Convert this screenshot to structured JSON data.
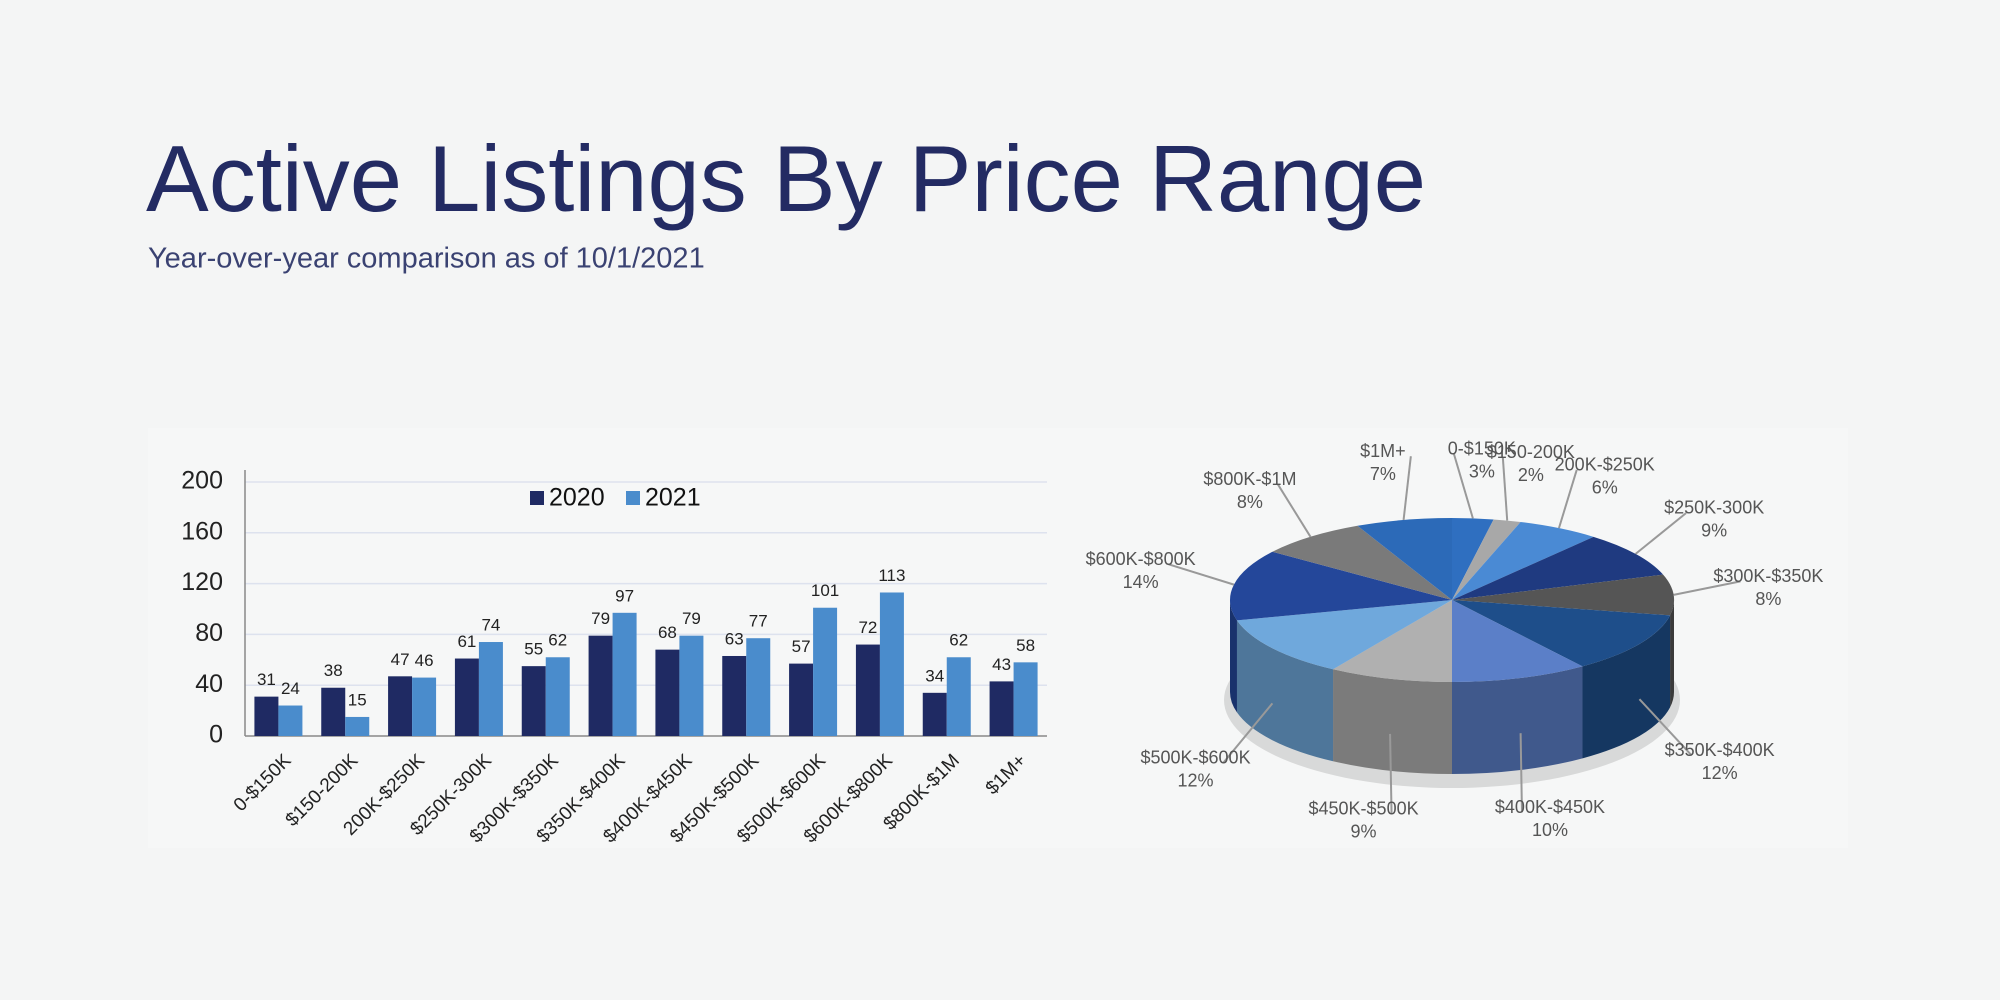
{
  "header": {
    "title": "Active Listings By Price Range",
    "subtitle": "Year-over-year comparison as of 10/1/2021"
  },
  "chart_data": [
    {
      "type": "bar",
      "categories": [
        "0-$150K",
        "$150-200K",
        "200K-$250K",
        "$250K-300K",
        "$300K-$350K",
        "$350K-$400K",
        "$400K-$450K",
        "$450K-$500K",
        "$500K-$600K",
        "$600K-$800K",
        "$800K-$1M",
        "$1M+"
      ],
      "series": [
        {
          "name": "2020",
          "color": "#1f2a63",
          "values": [
            31,
            38,
            47,
            61,
            55,
            79,
            68,
            63,
            57,
            72,
            34,
            43
          ]
        },
        {
          "name": "2021",
          "color": "#4a8ccc",
          "values": [
            24,
            15,
            46,
            74,
            62,
            97,
            79,
            77,
            101,
            113,
            62,
            58
          ]
        }
      ],
      "ylim": [
        0,
        200
      ],
      "yticks": [
        0,
        40,
        80,
        120,
        160,
        200
      ],
      "grid": true,
      "legend": "top"
    },
    {
      "type": "pie",
      "categories": [
        "0-$150K",
        "$150-200K",
        "200K-$250K",
        "$250K-300K",
        "$300K-$350K",
        "$350K-$400K",
        "$400K-$450K",
        "$450K-$500K",
        "$500K-$600K",
        "$600K-$800K",
        "$800K-$1M",
        "$1M+"
      ],
      "values": [
        3,
        2,
        6,
        9,
        8,
        12,
        10,
        9,
        12,
        14,
        8,
        7
      ],
      "value_labels": [
        "3%",
        "2%",
        "6%",
        "9%",
        "8%",
        "12%",
        "10%",
        "9%",
        "12%",
        "14%",
        "8%",
        "7%"
      ],
      "colors": [
        "#2f6fc0",
        "#a8a8a8",
        "#4a8ad4",
        "#1f3a80",
        "#555555",
        "#1e4e8a",
        "#5b7fc8",
        "#b0b0b0",
        "#6fa8dc",
        "#24479a",
        "#7a7a7a",
        "#2c6ab8"
      ]
    }
  ]
}
